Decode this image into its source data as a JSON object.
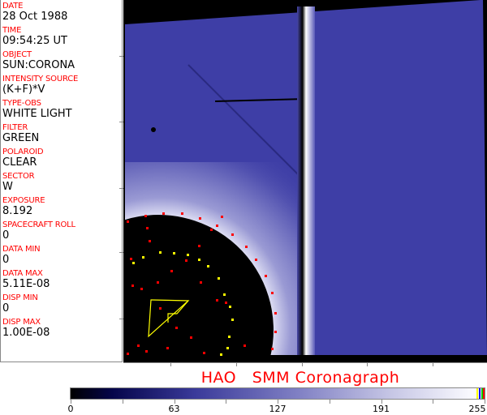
{
  "header_fields": [
    {
      "label": "DATE",
      "value": "28 Oct 1988"
    },
    {
      "label": "TIME",
      "value": "09:54:25 UT"
    },
    {
      "label": "OBJECT",
      "value": "SUN:CORONA"
    },
    {
      "label": "INTENSITY SOURCE",
      "value": "(K+F)*V"
    },
    {
      "label": "TYPE-OBS",
      "value": "WHITE LIGHT"
    },
    {
      "label": "FILTER",
      "value": "GREEN"
    },
    {
      "label": "POLAROID",
      "value": "CLEAR"
    },
    {
      "label": "SECTOR",
      "value": "W"
    },
    {
      "label": "EXPOSURE",
      "value": "8.192"
    },
    {
      "label": "SPACECRAFT ROLL",
      "value": "0"
    },
    {
      "label": "DATA MIN",
      "value": "0"
    },
    {
      "label": "DATA MAX",
      "value": "5.11E-08"
    },
    {
      "label": "DISP MIN",
      "value": "0"
    },
    {
      "label": "DISP MAX",
      "value": "1.00E-08"
    }
  ],
  "title": "HAO   SMM Coronagraph",
  "colorbar": {
    "ticks": [
      "0",
      "63",
      "127",
      "191",
      "255"
    ],
    "min_color": "#000000",
    "max_color": "#ffffff",
    "accent": "#3e3ea6"
  },
  "marker_colors": {
    "red": "#ff0000",
    "yellow": "#ffff00"
  }
}
